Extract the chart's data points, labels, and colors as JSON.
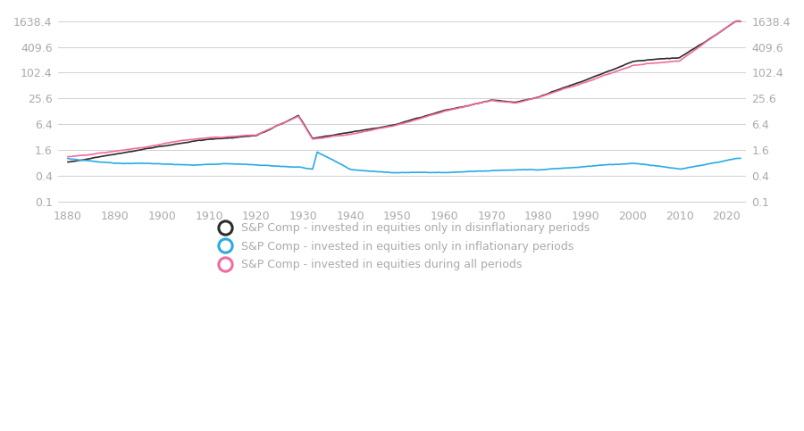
{
  "yticks": [
    0.1,
    0.4,
    1.6,
    6.4,
    25.6,
    102.4,
    409.6,
    1638.4
  ],
  "ytick_labels": [
    "0.1",
    "0.4",
    "1.6",
    "6.4",
    "25.6",
    "102.4",
    "409.6",
    "1638.4"
  ],
  "xticks": [
    1880,
    1890,
    1900,
    1910,
    1920,
    1930,
    1940,
    1950,
    1960,
    1970,
    1980,
    1990,
    2000,
    2010,
    2020
  ],
  "xlim": [
    1878,
    2024
  ],
  "ylim": [
    0.085,
    2500
  ],
  "line_deflationary_color": "#2d2d2d",
  "line_inflationary_color": "#29abe2",
  "line_all_color": "#f06ba0",
  "line_width": 1.2,
  "background_color": "#ffffff",
  "grid_color": "#d0d0d0",
  "tick_color": "#aaaaaa",
  "legend_items": [
    {
      "label": "S&P Comp - invested in equities only in disinflationary periods",
      "color": "#2d2d2d"
    },
    {
      "label": "S&P Comp - invested in equities only in inflationary periods",
      "color": "#29abe2"
    },
    {
      "label": "S&P Comp - invested in equities during all periods",
      "color": "#f06ba0"
    }
  ]
}
